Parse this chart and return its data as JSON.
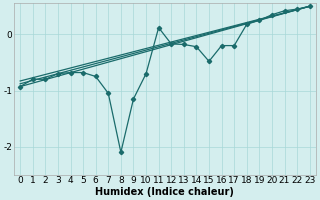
{
  "xlabel": "Humidex (Indice chaleur)",
  "bg_color": "#d4eeee",
  "line_color": "#1a6b6b",
  "xlim": [
    -0.5,
    23.5
  ],
  "ylim": [
    -2.5,
    0.55
  ],
  "yticks": [
    -2,
    -1,
    0
  ],
  "xticks": [
    0,
    1,
    2,
    3,
    4,
    5,
    6,
    7,
    8,
    9,
    10,
    11,
    12,
    13,
    14,
    15,
    16,
    17,
    18,
    19,
    20,
    21,
    22,
    23
  ],
  "jagged_line": [
    [
      0,
      -0.93
    ],
    [
      1,
      -0.8
    ],
    [
      2,
      -0.8
    ],
    [
      3,
      -0.7
    ],
    [
      4,
      -0.68
    ],
    [
      5,
      -0.68
    ],
    [
      6,
      -0.75
    ],
    [
      7,
      -1.05
    ],
    [
      8,
      -2.1
    ],
    [
      9,
      -1.15
    ],
    [
      10,
      -0.7
    ],
    [
      11,
      0.12
    ],
    [
      12,
      -0.17
    ],
    [
      13,
      -0.18
    ],
    [
      14,
      -0.22
    ],
    [
      15,
      -0.48
    ],
    [
      16,
      -0.2
    ],
    [
      17,
      -0.2
    ],
    [
      18,
      0.18
    ],
    [
      19,
      0.25
    ],
    [
      20,
      0.35
    ],
    [
      21,
      0.42
    ],
    [
      22,
      0.45
    ],
    [
      23,
      0.5
    ]
  ],
  "line1": [
    [
      0,
      -0.93
    ],
    [
      23,
      0.5
    ]
  ],
  "line2": [
    [
      0,
      -0.88
    ],
    [
      23,
      0.5
    ]
  ],
  "line3": [
    [
      0,
      -0.83
    ],
    [
      23,
      0.5
    ]
  ]
}
